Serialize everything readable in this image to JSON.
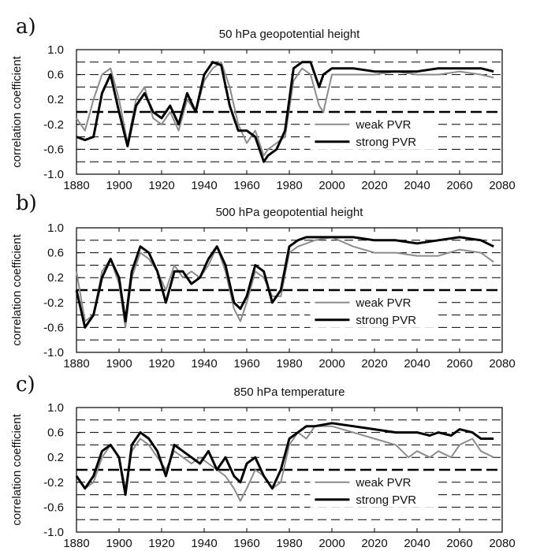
{
  "colors": {
    "weak": "#8c8c8c",
    "strong": "#000000",
    "grid": "#000000"
  },
  "chart_data": [
    {
      "type": "line",
      "panel_label": "a)",
      "title": "50 hPa geopotential height",
      "ylabel": "correlation coefficient",
      "xlabel": "",
      "xlim": [
        1880,
        2080
      ],
      "ylim": [
        -1.0,
        1.0
      ],
      "xticks": [
        "1880",
        "1900",
        "1920",
        "1940",
        "1960",
        "1980",
        "2000",
        "2020",
        "2040",
        "2060",
        "2080"
      ],
      "yticks": [
        "1.0",
        "0.6",
        "0.2",
        "-0.2",
        "-0.6",
        "-1.0"
      ],
      "grid": "horizontal dashed every 0.2, heavy dashed at 0",
      "legend": {
        "placement": "lower-right"
      },
      "series": [
        {
          "name": "weak PVR",
          "style": "weak",
          "x": [
            1880,
            1884,
            1888,
            1892,
            1896,
            1900,
            1904,
            1908,
            1912,
            1916,
            1920,
            1924,
            1928,
            1932,
            1936,
            1940,
            1944,
            1948,
            1952,
            1956,
            1960,
            1964,
            1968,
            1970,
            1974,
            1978,
            1982,
            1986,
            1990,
            1994,
            1996,
            2000,
            2010,
            2020,
            2030,
            2040,
            2050,
            2060,
            2070,
            2076
          ],
          "y": [
            -0.1,
            -0.3,
            0.2,
            0.6,
            0.7,
            0.2,
            -0.5,
            0.2,
            0.4,
            -0.1,
            -0.2,
            0.0,
            -0.3,
            0.2,
            0.0,
            0.5,
            0.7,
            0.8,
            0.4,
            -0.2,
            -0.5,
            -0.3,
            -0.7,
            -0.6,
            -0.5,
            -0.4,
            0.5,
            0.7,
            0.6,
            0.1,
            0.0,
            0.6,
            0.6,
            0.6,
            0.65,
            0.6,
            0.6,
            0.65,
            0.6,
            0.55
          ]
        },
        {
          "name": "strong PVR",
          "style": "strong",
          "x": [
            1880,
            1884,
            1888,
            1892,
            1896,
            1900,
            1904,
            1908,
            1912,
            1916,
            1920,
            1924,
            1928,
            1932,
            1936,
            1940,
            1944,
            1948,
            1952,
            1956,
            1960,
            1964,
            1968,
            1970,
            1974,
            1978,
            1982,
            1986,
            1990,
            1994,
            1996,
            2000,
            2010,
            2020,
            2030,
            2040,
            2050,
            2060,
            2070,
            2076
          ],
          "y": [
            -0.4,
            -0.45,
            -0.4,
            0.3,
            0.6,
            0.0,
            -0.55,
            0.1,
            0.3,
            0.0,
            -0.1,
            0.1,
            -0.2,
            0.3,
            0.0,
            0.6,
            0.8,
            0.75,
            0.1,
            -0.3,
            -0.3,
            -0.4,
            -0.8,
            -0.7,
            -0.6,
            -0.3,
            0.7,
            0.8,
            0.8,
            0.4,
            0.6,
            0.7,
            0.7,
            0.65,
            0.65,
            0.65,
            0.7,
            0.7,
            0.7,
            0.65
          ]
        }
      ]
    },
    {
      "type": "line",
      "panel_label": "b)",
      "title": "500 hPa geopotential height",
      "ylabel": "correlation coefficient",
      "xlabel": "",
      "xlim": [
        1880,
        2080
      ],
      "ylim": [
        -1.0,
        1.0
      ],
      "xticks": [
        "1880",
        "1900",
        "1920",
        "1940",
        "1960",
        "1980",
        "2000",
        "2020",
        "2040",
        "2060",
        "2080"
      ],
      "yticks": [
        "1.0",
        "0.6",
        "0.2",
        "-0.2",
        "-0.6",
        "-1.0"
      ],
      "grid": "horizontal dashed every 0.2, heavy dashed at 0",
      "legend": {
        "placement": "lower-right"
      },
      "series": [
        {
          "name": "weak PVR",
          "style": "weak",
          "x": [
            1880,
            1884,
            1888,
            1892,
            1896,
            1900,
            1903,
            1906,
            1910,
            1914,
            1918,
            1922,
            1926,
            1930,
            1934,
            1938,
            1942,
            1946,
            1950,
            1954,
            1957,
            1960,
            1964,
            1968,
            1972,
            1976,
            1980,
            1984,
            1988,
            1992,
            2000,
            2010,
            2020,
            2030,
            2040,
            2050,
            2060,
            2070,
            2076
          ],
          "y": [
            0.3,
            -0.5,
            -0.4,
            0.3,
            0.5,
            0.1,
            -0.6,
            0.2,
            0.6,
            0.5,
            0.3,
            0.0,
            0.4,
            0.2,
            0.3,
            0.2,
            0.4,
            0.7,
            0.3,
            -0.3,
            -0.5,
            -0.2,
            0.3,
            0.2,
            -0.1,
            -0.1,
            0.6,
            0.7,
            0.75,
            0.8,
            0.85,
            0.7,
            0.6,
            0.6,
            0.55,
            0.55,
            0.65,
            0.6,
            0.45
          ]
        },
        {
          "name": "strong PVR",
          "style": "strong",
          "x": [
            1880,
            1884,
            1888,
            1892,
            1896,
            1900,
            1903,
            1906,
            1910,
            1914,
            1918,
            1922,
            1926,
            1930,
            1934,
            1938,
            1942,
            1946,
            1950,
            1954,
            1957,
            1960,
            1964,
            1968,
            1972,
            1976,
            1980,
            1984,
            1988,
            1992,
            2000,
            2010,
            2020,
            2030,
            2040,
            2050,
            2060,
            2070,
            2076
          ],
          "y": [
            0.0,
            -0.6,
            -0.4,
            0.2,
            0.5,
            0.2,
            -0.5,
            0.3,
            0.7,
            0.6,
            0.3,
            -0.2,
            0.3,
            0.3,
            0.1,
            0.2,
            0.5,
            0.7,
            0.4,
            -0.2,
            -0.3,
            -0.1,
            0.4,
            0.3,
            -0.2,
            0.0,
            0.7,
            0.8,
            0.85,
            0.85,
            0.85,
            0.85,
            0.8,
            0.8,
            0.75,
            0.8,
            0.85,
            0.8,
            0.7
          ]
        }
      ]
    },
    {
      "type": "line",
      "panel_label": "c)",
      "title": "850 hPa temperature",
      "ylabel": "correlation coefficient",
      "xlabel": "",
      "xlim": [
        1880,
        2080
      ],
      "ylim": [
        -1.0,
        1.0
      ],
      "xticks": [
        "1880",
        "1900",
        "1920",
        "1940",
        "1960",
        "1980",
        "2000",
        "2020",
        "2040",
        "2060",
        "2080"
      ],
      "yticks": [
        "1.0",
        "0.6",
        "0.2",
        "-0.2",
        "-0.6",
        "-1.0"
      ],
      "grid": "horizontal dashed every 0.2, heavy dashed at 0",
      "legend": {
        "placement": "lower-right"
      },
      "series": [
        {
          "name": "weak PVR",
          "style": "weak",
          "x": [
            1880,
            1884,
            1888,
            1892,
            1896,
            1900,
            1903,
            1906,
            1910,
            1914,
            1918,
            1922,
            1926,
            1930,
            1934,
            1938,
            1942,
            1946,
            1950,
            1954,
            1957,
            1960,
            1964,
            1968,
            1972,
            1976,
            1980,
            1984,
            1988,
            1992,
            2000,
            2010,
            2020,
            2030,
            2036,
            2040,
            2046,
            2050,
            2056,
            2060,
            2066,
            2070,
            2076
          ],
          "y": [
            -0.1,
            -0.3,
            -0.2,
            0.2,
            0.4,
            0.2,
            -0.3,
            0.3,
            0.5,
            0.4,
            0.2,
            0.0,
            0.3,
            0.2,
            0.1,
            0.2,
            0.1,
            0.0,
            -0.1,
            -0.3,
            -0.5,
            -0.3,
            0.0,
            -0.1,
            -0.3,
            -0.2,
            0.4,
            0.6,
            0.5,
            0.7,
            0.7,
            0.6,
            0.5,
            0.4,
            0.2,
            0.3,
            0.2,
            0.3,
            0.2,
            0.4,
            0.5,
            0.3,
            0.2
          ]
        },
        {
          "name": "strong PVR",
          "style": "strong",
          "x": [
            1880,
            1884,
            1888,
            1892,
            1896,
            1900,
            1903,
            1906,
            1910,
            1914,
            1918,
            1922,
            1926,
            1930,
            1934,
            1938,
            1942,
            1946,
            1950,
            1954,
            1957,
            1960,
            1964,
            1968,
            1972,
            1976,
            1980,
            1984,
            1988,
            1992,
            2000,
            2010,
            2020,
            2030,
            2036,
            2040,
            2046,
            2050,
            2056,
            2060,
            2066,
            2070,
            2076
          ],
          "y": [
            -0.1,
            -0.3,
            -0.1,
            0.3,
            0.4,
            0.2,
            -0.4,
            0.4,
            0.6,
            0.5,
            0.3,
            -0.1,
            0.4,
            0.3,
            0.2,
            0.1,
            0.3,
            0.0,
            0.2,
            -0.1,
            -0.2,
            0.1,
            0.2,
            -0.1,
            -0.3,
            0.0,
            0.5,
            0.6,
            0.7,
            0.7,
            0.75,
            0.7,
            0.65,
            0.6,
            0.6,
            0.6,
            0.55,
            0.6,
            0.55,
            0.65,
            0.6,
            0.5,
            0.5
          ]
        }
      ]
    }
  ]
}
